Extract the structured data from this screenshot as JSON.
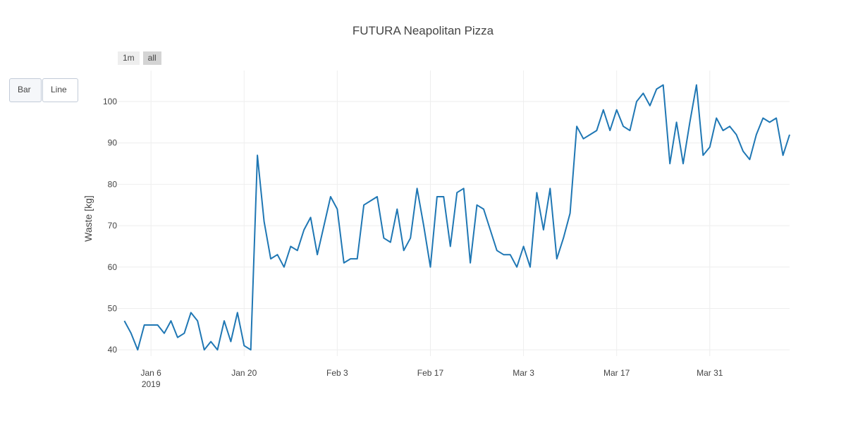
{
  "range_selector": {
    "buttons": [
      {
        "label": "1m",
        "active": false
      },
      {
        "label": "all",
        "active": true
      }
    ]
  },
  "chart_type_buttons": [
    {
      "label": "Bar"
    },
    {
      "label": "Line"
    }
  ],
  "chart_data": {
    "type": "line",
    "title": "FUTURA Neapolitan Pizza",
    "xlabel": "",
    "ylabel": "Waste [kg]",
    "grid": true,
    "line_color": "#1f77b4",
    "x_start": "2019-01-02",
    "x_end": "2019-04-12",
    "xlim": [
      "2019-01-01",
      "2019-04-12"
    ],
    "ylim": [
      38.5,
      107.5
    ],
    "yticks": [
      40,
      50,
      60,
      70,
      80,
      90,
      100
    ],
    "xticks": [
      {
        "date": "2019-01-06",
        "label": "Jan 6",
        "sublabel": "2019"
      },
      {
        "date": "2019-01-20",
        "label": "Jan 20",
        "sublabel": ""
      },
      {
        "date": "2019-02-03",
        "label": "Feb 3",
        "sublabel": ""
      },
      {
        "date": "2019-02-17",
        "label": "Feb 17",
        "sublabel": ""
      },
      {
        "date": "2019-03-03",
        "label": "Mar 3",
        "sublabel": ""
      },
      {
        "date": "2019-03-17",
        "label": "Mar 17",
        "sublabel": ""
      },
      {
        "date": "2019-03-31",
        "label": "Mar 31",
        "sublabel": ""
      }
    ],
    "values": [
      47,
      44,
      40,
      46,
      46,
      46,
      44,
      47,
      43,
      44,
      49,
      47,
      40,
      42,
      40,
      47,
      42,
      49,
      41,
      40,
      87,
      71,
      62,
      63,
      60,
      65,
      64,
      69,
      72,
      63,
      70,
      77,
      74,
      61,
      62,
      62,
      75,
      76,
      77,
      67,
      66,
      74,
      64,
      67,
      79,
      70,
      60,
      77,
      77,
      65,
      78,
      79,
      61,
      75,
      74,
      69,
      64,
      63,
      63,
      60,
      65,
      60,
      78,
      69,
      79,
      62,
      67,
      73,
      94,
      91,
      92,
      93,
      98,
      93,
      98,
      94,
      93,
      100,
      102,
      99,
      103,
      104,
      85,
      95,
      85,
      95,
      104,
      87,
      89,
      96,
      93,
      94,
      92,
      88,
      86,
      92,
      96,
      95,
      96,
      87,
      92
    ]
  }
}
